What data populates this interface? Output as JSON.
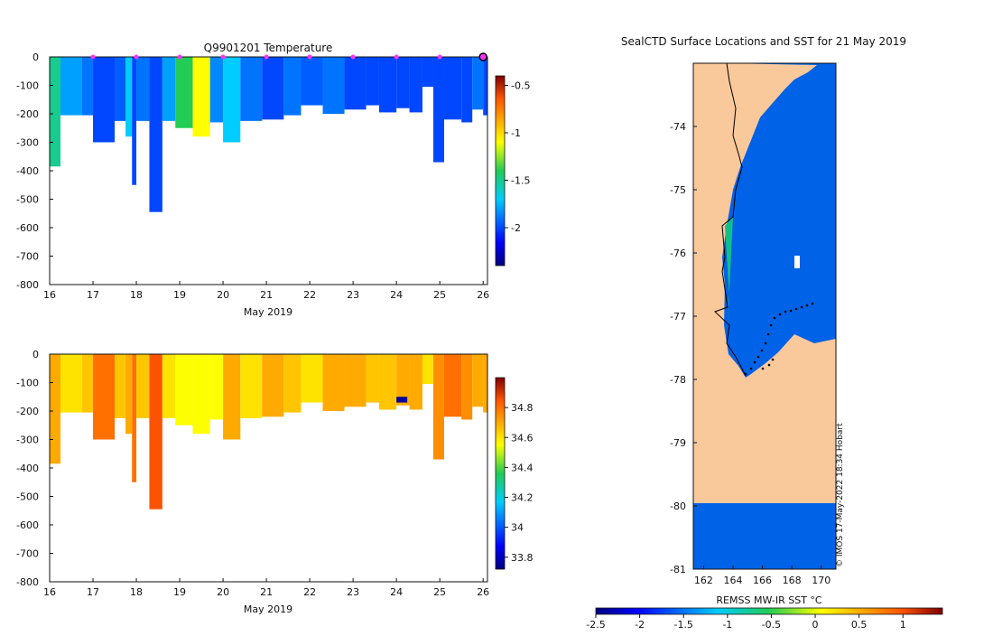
{
  "chart_data": [
    {
      "type": "heatmap",
      "title": "Q9901201  Temperature",
      "xlabel": "May 2019",
      "ylabel": "",
      "xlim": [
        16,
        26.1
      ],
      "ylim": [
        -800,
        0
      ],
      "xticks": [
        "16",
        "17",
        "18",
        "19",
        "20",
        "21",
        "22",
        "23",
        "24",
        "25",
        "26"
      ],
      "yticks": [
        "0",
        "-100",
        "-200",
        "-300",
        "-400",
        "-500",
        "-600",
        "-700",
        "-800"
      ],
      "colorbar": {
        "range": [
          -2.4,
          -0.4
        ],
        "ticks": [
          "-0.5",
          "-1",
          "-1.5",
          "-2"
        ]
      },
      "markers_days": [
        17,
        18,
        19,
        20,
        21,
        22,
        23,
        24,
        25,
        26
      ],
      "marker_color": "#ff33ff",
      "profiles": [
        {
          "day": 16.0,
          "bottom": 385,
          "value": -1.5
        },
        {
          "day": 16.25,
          "bottom": 205,
          "value": -1.8
        },
        {
          "day": 16.75,
          "bottom": 205,
          "value": -1.9
        },
        {
          "day": 17.0,
          "bottom": 300,
          "value": -2.0
        },
        {
          "day": 17.5,
          "bottom": 225,
          "value": -1.95
        },
        {
          "day": 17.75,
          "bottom": 280,
          "value": -1.7
        },
        {
          "day": 17.9,
          "bottom": 450,
          "value": -2.0
        },
        {
          "day": 18.0,
          "bottom": 225,
          "value": -1.9
        },
        {
          "day": 18.3,
          "bottom": 545,
          "value": -2.0
        },
        {
          "day": 18.6,
          "bottom": 225,
          "value": -1.8
        },
        {
          "day": 18.9,
          "bottom": 250,
          "value": -1.4
        },
        {
          "day": 19.3,
          "bottom": 280,
          "value": -1.1
        },
        {
          "day": 19.7,
          "bottom": 230,
          "value": -1.85
        },
        {
          "day": 20.0,
          "bottom": 300,
          "value": -1.7
        },
        {
          "day": 20.4,
          "bottom": 225,
          "value": -1.9
        },
        {
          "day": 20.9,
          "bottom": 220,
          "value": -2.0
        },
        {
          "day": 21.4,
          "bottom": 205,
          "value": -1.9
        },
        {
          "day": 21.8,
          "bottom": 170,
          "value": -1.95
        },
        {
          "day": 22.3,
          "bottom": 200,
          "value": -1.9
        },
        {
          "day": 22.8,
          "bottom": 185,
          "value": -2.0
        },
        {
          "day": 23.3,
          "bottom": 170,
          "value": -2.0
        },
        {
          "day": 23.6,
          "bottom": 195,
          "value": -2.0
        },
        {
          "day": 24.0,
          "bottom": 180,
          "value": -2.0
        },
        {
          "day": 24.3,
          "bottom": 195,
          "value": -2.0
        },
        {
          "day": 24.6,
          "bottom": 105,
          "value": -2.0
        },
        {
          "day": 24.85,
          "bottom": 370,
          "value": -2.0
        },
        {
          "day": 25.1,
          "bottom": 220,
          "value": -2.0
        },
        {
          "day": 25.5,
          "bottom": 230,
          "value": -2.0
        },
        {
          "day": 25.75,
          "bottom": 185,
          "value": -1.9
        },
        {
          "day": 26.0,
          "bottom": 205,
          "value": -2.0
        }
      ]
    },
    {
      "type": "heatmap",
      "title": "",
      "xlabel": "May 2019",
      "xlim": [
        16,
        26.1
      ],
      "ylim": [
        -800,
        0
      ],
      "xticks": [
        "16",
        "17",
        "18",
        "19",
        "20",
        "21",
        "22",
        "23",
        "24",
        "25",
        "26"
      ],
      "yticks": [
        "0",
        "-100",
        "-200",
        "-300",
        "-400",
        "-500",
        "-600",
        "-700",
        "-800"
      ],
      "colorbar": {
        "range": [
          33.72,
          35.0
        ],
        "ticks": [
          "34.8",
          "34.6",
          "34.4",
          "34.2",
          "34",
          "33.8"
        ]
      },
      "profiles": [
        {
          "day": 16.0,
          "bottom": 385,
          "value": 34.7
        },
        {
          "day": 16.25,
          "bottom": 205,
          "value": 34.6
        },
        {
          "day": 16.75,
          "bottom": 205,
          "value": 34.65
        },
        {
          "day": 17.0,
          "bottom": 300,
          "value": 34.8
        },
        {
          "day": 17.5,
          "bottom": 225,
          "value": 34.65
        },
        {
          "day": 17.75,
          "bottom": 280,
          "value": 34.7
        },
        {
          "day": 17.9,
          "bottom": 450,
          "value": 34.8
        },
        {
          "day": 18.0,
          "bottom": 225,
          "value": 34.65
        },
        {
          "day": 18.3,
          "bottom": 545,
          "value": 34.85
        },
        {
          "day": 18.6,
          "bottom": 225,
          "value": 34.6
        },
        {
          "day": 18.9,
          "bottom": 250,
          "value": 34.55
        },
        {
          "day": 19.3,
          "bottom": 280,
          "value": 34.55
        },
        {
          "day": 19.7,
          "bottom": 230,
          "value": 34.55
        },
        {
          "day": 20.0,
          "bottom": 300,
          "value": 34.7
        },
        {
          "day": 20.4,
          "bottom": 225,
          "value": 34.6
        },
        {
          "day": 20.9,
          "bottom": 220,
          "value": 34.7
        },
        {
          "day": 21.4,
          "bottom": 205,
          "value": 34.65
        },
        {
          "day": 21.8,
          "bottom": 170,
          "value": 34.6
        },
        {
          "day": 22.3,
          "bottom": 200,
          "value": 34.7
        },
        {
          "day": 22.8,
          "bottom": 185,
          "value": 34.7
        },
        {
          "day": 23.3,
          "bottom": 170,
          "value": 34.65
        },
        {
          "day": 23.6,
          "bottom": 195,
          "value": 34.65
        },
        {
          "day": 24.0,
          "bottom": 180,
          "value": 34.7
        },
        {
          "day": 24.3,
          "bottom": 195,
          "value": 34.7
        },
        {
          "day": 24.6,
          "bottom": 105,
          "value": 34.6
        },
        {
          "day": 24.85,
          "bottom": 370,
          "value": 34.75
        },
        {
          "day": 25.1,
          "bottom": 220,
          "value": 34.8
        },
        {
          "day": 25.5,
          "bottom": 230,
          "value": 34.75
        },
        {
          "day": 25.75,
          "bottom": 185,
          "value": 34.7
        },
        {
          "day": 26.0,
          "bottom": 205,
          "value": 34.7
        }
      ],
      "anomaly": {
        "day": 24.0,
        "depth_top": 150,
        "depth_bottom": 170,
        "value": 33.75
      }
    },
    {
      "type": "heatmap",
      "title": "SealCTD Surface Locations and SST for 21 May 2019",
      "xlabel": "REMSS MW-IR SST °C",
      "xlim": [
        161.3,
        171.0
      ],
      "ylim": [
        -81,
        -73.0
      ],
      "xticks": [
        "162",
        "164",
        "166",
        "168",
        "170"
      ],
      "yticks": [
        "-74",
        "-75",
        "-76",
        "-77",
        "-78",
        "-79",
        "-80",
        "-81"
      ],
      "colorbar": {
        "range": [
          -2.5,
          1.45
        ],
        "ticks": [
          "-2.5",
          "-2",
          "-1.5",
          "-1",
          "-0.5",
          "0",
          "0.5",
          "1"
        ]
      },
      "sst_open_ocean": -1.85,
      "land_color": "#f9c89b",
      "credit": "© IMOS 17-May-2022 18:34 Hobart"
    }
  ]
}
